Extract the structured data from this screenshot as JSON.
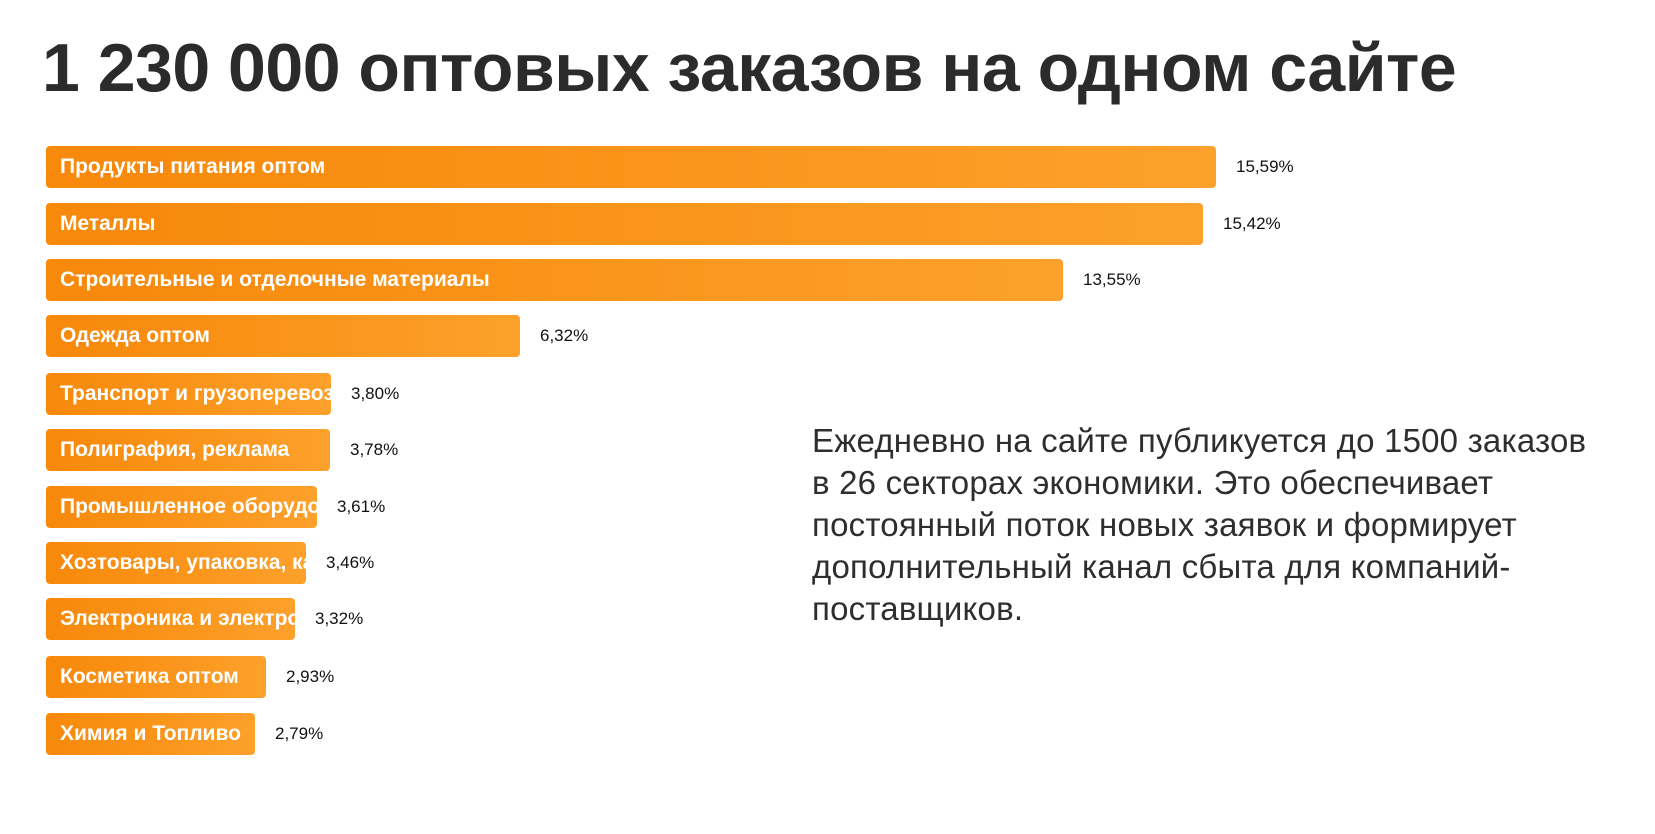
{
  "title": "1 230 000 оптовых заказов на одном сайте",
  "description": "Ежедневно на сайте публикуется до 1500 заказов в 26 секторах экономики. Это обеспечивает постоянный поток новых заявок и формирует дополнительный канал сбыта для компаний-поставщиков.",
  "colors": {
    "bar": "#f7890b",
    "bar_light": "#fca12c",
    "title": "#2b2b2b",
    "text": "#2e2e2e"
  },
  "chart_data": {
    "type": "bar",
    "orientation": "horizontal",
    "title": "",
    "xlabel": "",
    "ylabel": "",
    "grid": false,
    "xlim": [
      0,
      15.59
    ],
    "categories": [
      "Продукты питания оптом",
      "Металлы",
      "Строительные и отделочные материалы",
      "Одежда оптом",
      "Транспорт и грузоперевозки",
      "Полиграфия, реклама",
      "Промышленное оборудование и инструменты",
      "Хозтовары, упаковка, канцелярия",
      "Электроника и электротехника",
      "Косметика оптом",
      "Химия и Топливо"
    ],
    "values": [
      15.59,
      15.42,
      13.55,
      6.32,
      3.8,
      3.78,
      3.61,
      3.46,
      3.32,
      2.93,
      2.79
    ],
    "value_labels": [
      "15,59%",
      "15,42%",
      "13,55%",
      "6,32%",
      "3,80%",
      "3,78%",
      "3,61%",
      "3,46%",
      "3,32%",
      "2,93%",
      "2,79%"
    ]
  }
}
